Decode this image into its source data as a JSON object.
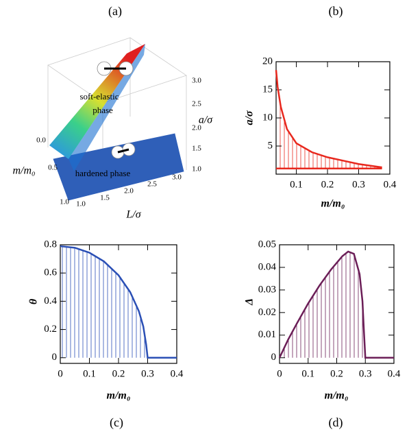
{
  "chart_data": [
    {
      "type": "surface3d",
      "panel_label": "(a)",
      "xlabel": "L/σ",
      "ylabel": "m/m₀",
      "zlabel": "a/σ",
      "xticks": [
        {
          "value": 1,
          "label": "1.0"
        },
        {
          "value": 1.5,
          "label": "1.5"
        },
        {
          "value": 2,
          "label": "2.0"
        },
        {
          "value": 2.5,
          "label": "2.5"
        },
        {
          "value": 3,
          "label": "3.0"
        }
      ],
      "yticks": [
        {
          "value": 0,
          "label": "0.0"
        },
        {
          "value": 0.5,
          "label": "0.5"
        },
        {
          "value": 1,
          "label": "1.0"
        }
      ],
      "zticks": [
        {
          "value": 1,
          "label": "1.0"
        },
        {
          "value": 1.5,
          "label": "1.5"
        },
        {
          "value": 2,
          "label": "2.0"
        },
        {
          "value": 2.5,
          "label": "2.5"
        },
        {
          "value": 3,
          "label": "3.0"
        }
      ],
      "annotations": [
        "soft-elastic",
        "phase",
        "hardened phase"
      ]
    },
    {
      "type": "hatched-line",
      "panel_label": "(b)",
      "xlabel": "m/m₀",
      "ylabel": "a/σ",
      "color": "#e8281e",
      "xlim": [
        0.035,
        0.4
      ],
      "ylim": [
        0,
        20
      ],
      "xticks": [
        0.1,
        0.2,
        0.3,
        0.4
      ],
      "yticks": [
        5,
        10,
        15,
        20
      ],
      "series": [
        {
          "x": [
            0.035,
            0.04,
            0.05,
            0.07,
            0.1,
            0.15,
            0.2,
            0.25,
            0.3,
            0.35,
            0.375
          ],
          "values": [
            18.5,
            15.5,
            12,
            8,
            5.5,
            3.9,
            3,
            2.4,
            1.8,
            1.4,
            1.2
          ]
        },
        {
          "x": [
            0.035,
            0.375
          ],
          "values": [
            1,
            1
          ]
        }
      ]
    },
    {
      "type": "hatched-line",
      "panel_label": "(c)",
      "xlabel": "m/m₀",
      "ylabel": "θ",
      "color": "#2a4fb5",
      "xlim": [
        0,
        0.4
      ],
      "ylim": [
        -0.04,
        0.8
      ],
      "xticks": [
        0,
        0.1,
        0.2,
        0.3,
        0.4
      ],
      "yticks": [
        0,
        0.2,
        0.4,
        0.6,
        0.8
      ],
      "series": [
        {
          "x": [
            0,
            0.05,
            0.1,
            0.15,
            0.2,
            0.24,
            0.27,
            0.285,
            0.295,
            0.3,
            0.4
          ],
          "values": [
            0.79,
            0.779,
            0.744,
            0.682,
            0.584,
            0.465,
            0.329,
            0.222,
            0.092,
            0,
            0
          ]
        }
      ]
    },
    {
      "type": "hatched-line",
      "panel_label": "(d)",
      "xlabel": "m/m₀",
      "ylabel": "Δ",
      "color": "#6b1e57",
      "xlim": [
        0,
        0.4
      ],
      "ylim": [
        -0.0025,
        0.05
      ],
      "xticks": [
        0,
        0.1,
        0.2,
        0.3,
        0.4
      ],
      "yticks": [
        0,
        0.01,
        0.02,
        0.03,
        0.04,
        0.05
      ],
      "series": [
        {
          "x": [
            0,
            0.03,
            0.06,
            0.1,
            0.14,
            0.18,
            0.22,
            0.24,
            0.26,
            0.28,
            0.29,
            0.295,
            0.3,
            0.4
          ],
          "values": [
            0,
            0.008,
            0.015,
            0.024,
            0.032,
            0.039,
            0.045,
            0.047,
            0.046,
            0.037,
            0.025,
            0.012,
            0,
            0
          ]
        }
      ]
    }
  ]
}
